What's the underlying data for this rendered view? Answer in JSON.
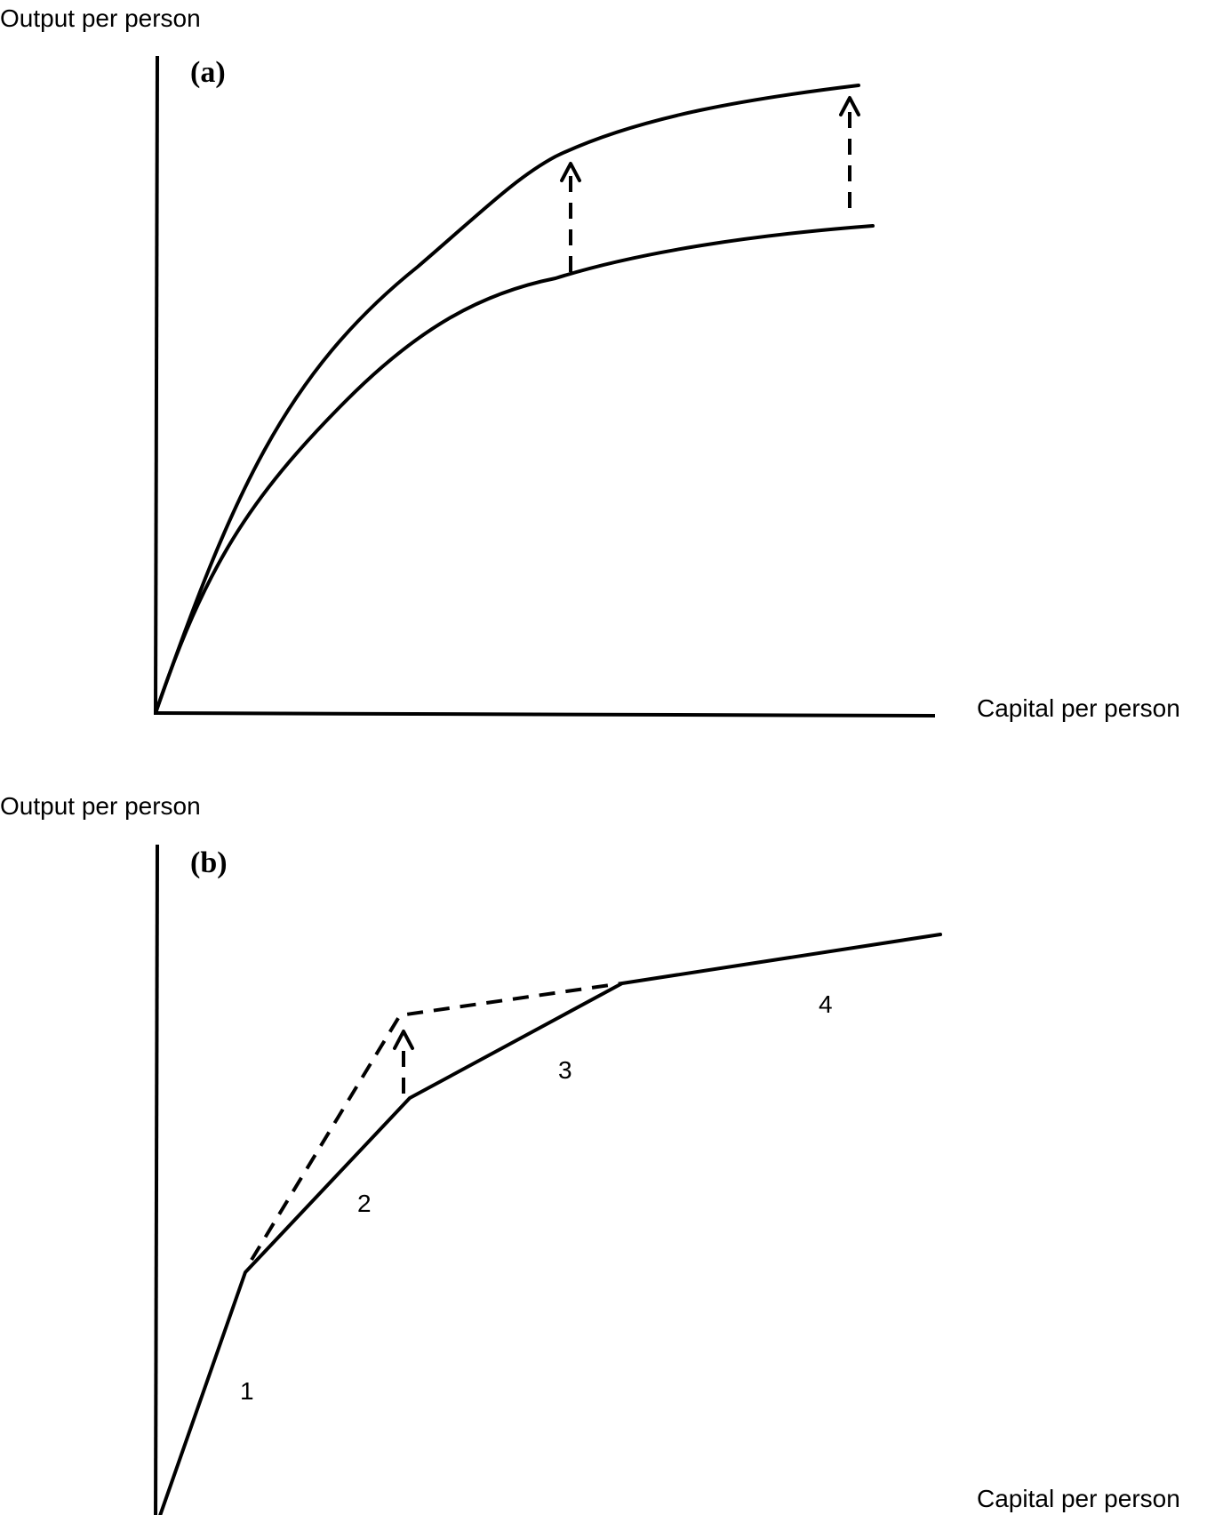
{
  "panel_a": {
    "panel_label": "(a)",
    "y_axis_label": "Output per person",
    "x_axis_label": "Capital per person"
  },
  "panel_b": {
    "panel_label": "(b)",
    "y_axis_label": "Output per person",
    "x_axis_label": "Capital per person",
    "segment_labels": [
      "1",
      "2",
      "3",
      "4"
    ]
  },
  "colors": {
    "line": "#000000",
    "background": "#ffffff"
  }
}
